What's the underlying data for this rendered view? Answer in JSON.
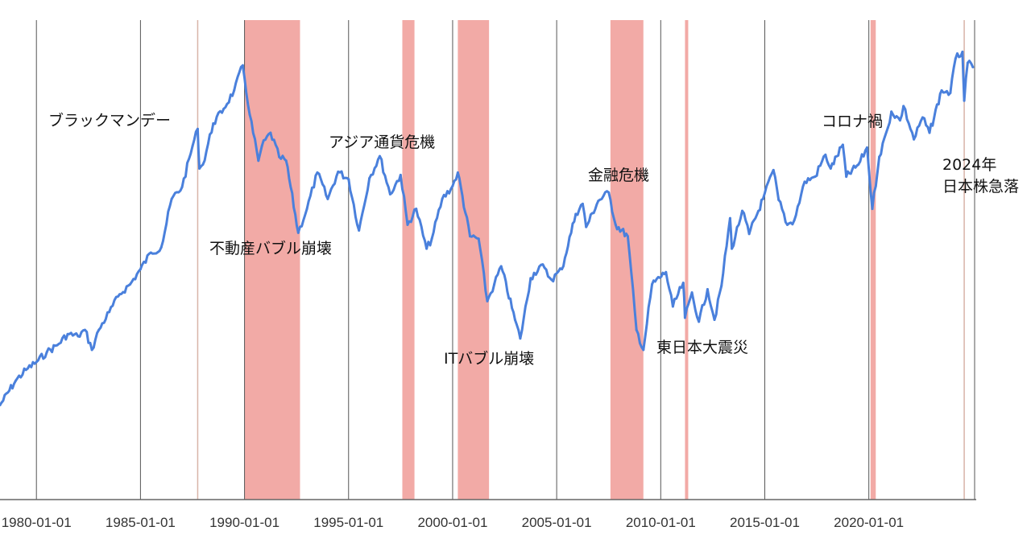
{
  "chart_data": {
    "type": "line",
    "title": "",
    "xlabel": "",
    "ylabel": "",
    "y_scale": "log",
    "y_axis_labels_shown": false,
    "xlim": [
      "1978-04",
      "2025-02"
    ],
    "ylim": [
      2900,
      51000
    ],
    "grid": "vertical lines at x ticks",
    "legend": "none",
    "colors": {
      "line": "#4a80dc",
      "shade": "#f2aaa6",
      "grid": "#555555",
      "event_line": "#d8b4a8"
    },
    "x_ticks": [
      "1980-01-01",
      "1985-01-01",
      "1990-01-01",
      "1995-01-01",
      "2000-01-01",
      "2005-01-01",
      "2010-01-01",
      "2015-01-01",
      "2020-01-01"
    ],
    "shaded_periods": [
      [
        "1990-01",
        "1992-09"
      ],
      [
        "1997-08",
        "1998-03"
      ],
      [
        "2000-04",
        "2001-10"
      ],
      [
        "2007-08",
        "2009-03"
      ],
      [
        "2011-03",
        "2011-04"
      ],
      [
        "2020-02",
        "2020-05"
      ]
    ],
    "event_lines": [
      "1987-10",
      "2024-08"
    ],
    "series": [
      {
        "points": [
          [
            "1978-04",
            5100
          ],
          [
            "1979-01",
            5900
          ],
          [
            "1979-07",
            6300
          ],
          [
            "1980-01",
            6600
          ],
          [
            "1980-07",
            7000
          ],
          [
            "1981-01",
            7300
          ],
          [
            "1981-07",
            7800
          ],
          [
            "1982-01",
            7700
          ],
          [
            "1982-05",
            8000
          ],
          [
            "1982-09",
            7100
          ],
          [
            "1983-01",
            8000
          ],
          [
            "1983-07",
            8900
          ],
          [
            "1984-01",
            9900
          ],
          [
            "1984-07",
            10500
          ],
          [
            "1985-01",
            11500
          ],
          [
            "1985-07",
            12700
          ],
          [
            "1986-01",
            13100
          ],
          [
            "1986-07",
            17500
          ],
          [
            "1987-01",
            18800
          ],
          [
            "1987-07",
            24000
          ],
          [
            "1987-10",
            26600
          ],
          [
            "1987-11",
            21000
          ],
          [
            "1988-01",
            21500
          ],
          [
            "1988-07",
            27500
          ],
          [
            "1989-01",
            30000
          ],
          [
            "1989-07",
            33500
          ],
          [
            "1989-12",
            38900
          ],
          [
            "1990-04",
            29000
          ],
          [
            "1990-09",
            22000
          ],
          [
            "1990-11",
            24000
          ],
          [
            "1991-04",
            26000
          ],
          [
            "1991-09",
            22500
          ],
          [
            "1992-01",
            22000
          ],
          [
            "1992-08",
            14300
          ],
          [
            "1993-01",
            16500
          ],
          [
            "1993-07",
            20500
          ],
          [
            "1994-01",
            17500
          ],
          [
            "1994-07",
            20600
          ],
          [
            "1995-01",
            19700
          ],
          [
            "1995-07",
            14500
          ],
          [
            "1996-01",
            19800
          ],
          [
            "1996-07",
            22600
          ],
          [
            "1997-01",
            18000
          ],
          [
            "1997-07",
            20200
          ],
          [
            "1997-11",
            15000
          ],
          [
            "1998-04",
            16500
          ],
          [
            "1998-10",
            13000
          ],
          [
            "1999-01",
            13800
          ],
          [
            "1999-07",
            17500
          ],
          [
            "2000-01",
            18900
          ],
          [
            "2000-04",
            20500
          ],
          [
            "2000-11",
            14000
          ],
          [
            "2001-04",
            13800
          ],
          [
            "2001-09",
            9500
          ],
          [
            "2002-01",
            10500
          ],
          [
            "2002-05",
            11700
          ],
          [
            "2003-01",
            8500
          ],
          [
            "2003-04",
            7600
          ],
          [
            "2003-10",
            10900
          ],
          [
            "2004-04",
            11800
          ],
          [
            "2004-10",
            10800
          ],
          [
            "2005-04",
            11500
          ],
          [
            "2005-12",
            16000
          ],
          [
            "2006-04",
            17000
          ],
          [
            "2006-06",
            14800
          ],
          [
            "2007-01",
            17300
          ],
          [
            "2007-07",
            18200
          ],
          [
            "2007-11",
            15000
          ],
          [
            "2008-06",
            14000
          ],
          [
            "2008-11",
            8000
          ],
          [
            "2009-03",
            7100
          ],
          [
            "2009-08",
            10500
          ],
          [
            "2010-04",
            11300
          ],
          [
            "2010-08",
            9200
          ],
          [
            "2011-02",
            10600
          ],
          [
            "2011-03",
            8600
          ],
          [
            "2011-07",
            10000
          ],
          [
            "2011-11",
            8400
          ],
          [
            "2012-04",
            10200
          ],
          [
            "2012-08",
            8500
          ],
          [
            "2012-12",
            10400
          ],
          [
            "2013-05",
            15600
          ],
          [
            "2013-06",
            13000
          ],
          [
            "2013-12",
            16300
          ],
          [
            "2014-04",
            14200
          ],
          [
            "2014-12",
            17500
          ],
          [
            "2015-06",
            20800
          ],
          [
            "2015-09",
            17400
          ],
          [
            "2016-02",
            15000
          ],
          [
            "2016-06",
            15400
          ],
          [
            "2016-12",
            19400
          ],
          [
            "2017-06",
            20000
          ],
          [
            "2017-12",
            22800
          ],
          [
            "2018-03",
            21000
          ],
          [
            "2018-10",
            24200
          ],
          [
            "2018-12",
            20000
          ],
          [
            "2019-07",
            21500
          ],
          [
            "2019-12",
            23800
          ],
          [
            "2020-03",
            16500
          ],
          [
            "2020-07",
            22500
          ],
          [
            "2020-12",
            26800
          ],
          [
            "2021-02",
            29500
          ],
          [
            "2021-07",
            28000
          ],
          [
            "2021-09",
            30500
          ],
          [
            "2022-03",
            25000
          ],
          [
            "2022-08",
            28500
          ],
          [
            "2022-12",
            26000
          ],
          [
            "2023-07",
            33500
          ],
          [
            "2023-12",
            33000
          ],
          [
            "2024-03",
            40500
          ],
          [
            "2024-07",
            42200
          ],
          [
            "2024-08",
            31500
          ],
          [
            "2024-10",
            39500
          ],
          [
            "2025-01",
            38500
          ]
        ]
      }
    ],
    "annotations": {
      "black_monday": "ブラックマンデー",
      "bubble": "不動産バブル崩壊",
      "asia": "アジア通貨危機",
      "it": "ITバブル崩壊",
      "financial": "金融危機",
      "quake": "東日本大震災",
      "corona": "コロナ禍",
      "crash_2024_line1": "2024年",
      "crash_2024_line2": "日本株急落"
    }
  }
}
